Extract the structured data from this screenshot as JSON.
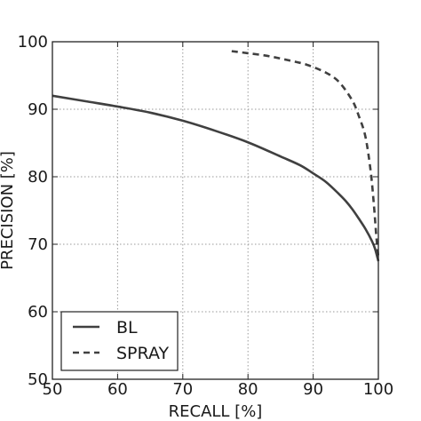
{
  "chart_data": {
    "type": "line",
    "title": "",
    "xlabel": "RECALL [%]",
    "ylabel": "PRECISION [%]",
    "xlim": [
      50,
      100
    ],
    "ylim": [
      50,
      100
    ],
    "xticks": [
      50,
      60,
      70,
      80,
      90,
      100
    ],
    "yticks": [
      50,
      60,
      70,
      80,
      90,
      100
    ],
    "grid": true,
    "legend_position": "bottom-left",
    "series": [
      {
        "name": "BL",
        "style": "solid",
        "color": "#404040",
        "x": [
          50,
          55,
          60,
          65,
          70,
          75,
          80,
          85,
          88,
          90,
          92,
          94,
          95,
          96,
          97,
          98,
          99,
          99.5,
          100
        ],
        "y": [
          92.0,
          91.2,
          90.4,
          89.5,
          88.3,
          86.8,
          85.1,
          83.0,
          81.7,
          80.5,
          79.2,
          77.4,
          76.4,
          75.2,
          73.8,
          72.3,
          70.5,
          69.3,
          67.5
        ]
      },
      {
        "name": "SPRAY",
        "style": "dashed",
        "color": "#404040",
        "x": [
          77.5,
          80,
          83,
          86,
          89,
          92,
          94,
          96,
          97,
          98,
          98.8,
          99.3,
          99.7,
          100
        ],
        "y": [
          98.6,
          98.3,
          97.9,
          97.3,
          96.6,
          95.4,
          94.0,
          91.3,
          89.0,
          86.0,
          81.0,
          76.0,
          71.0,
          68.0
        ]
      }
    ]
  }
}
